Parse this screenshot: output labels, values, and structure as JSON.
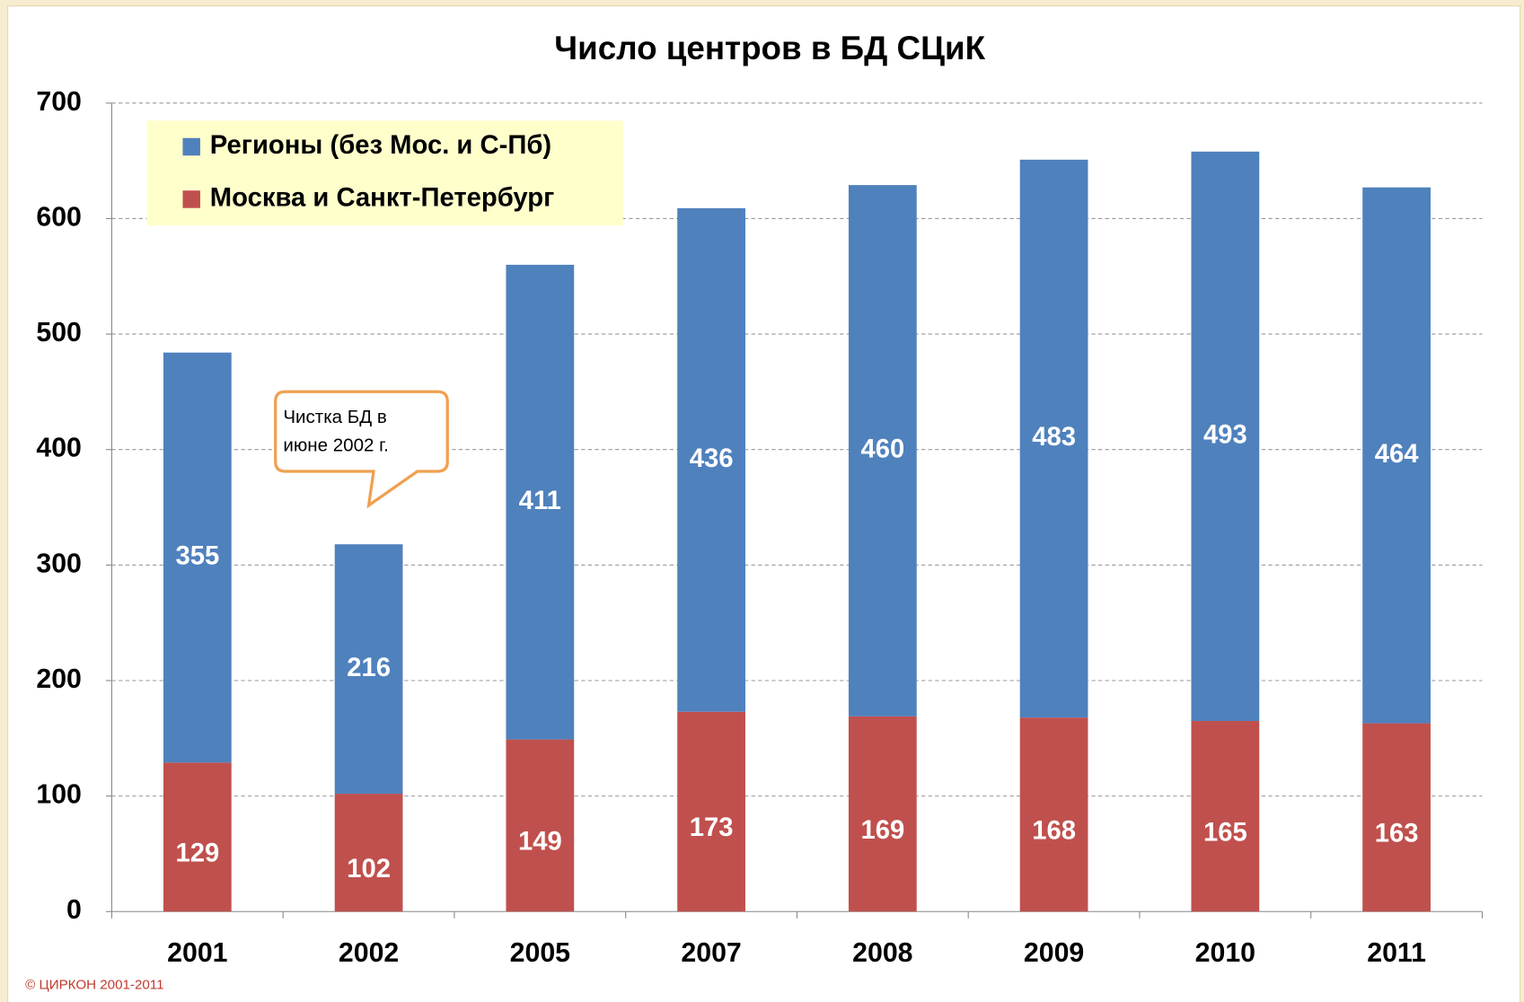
{
  "chart_data": {
    "type": "stacked_bar",
    "title": "Число центров в БД СЦиК",
    "categories": [
      "2001",
      "2002",
      "2005",
      "2007",
      "2008",
      "2009",
      "2010",
      "2011"
    ],
    "series": [
      {
        "name": "Регионы (без Мос. и С-Пб)",
        "color": "#4f81bd",
        "values": [
          355,
          216,
          411,
          436,
          460,
          483,
          493,
          464
        ]
      },
      {
        "name": "Москва и Санкт-Петербург",
        "color": "#c0504d",
        "values": [
          129,
          102,
          149,
          173,
          169,
          168,
          165,
          163
        ]
      }
    ],
    "ylim": [
      0,
      700
    ],
    "yticks": [
      0,
      100,
      200,
      300,
      400,
      500,
      600,
      700
    ],
    "grid": true,
    "legend": "top-left",
    "annotation": {
      "lines": [
        "Чистка БД в",
        "июне 2002 г."
      ],
      "category": "2002"
    },
    "footer": "© ЦИРКОН 2001-2011"
  }
}
